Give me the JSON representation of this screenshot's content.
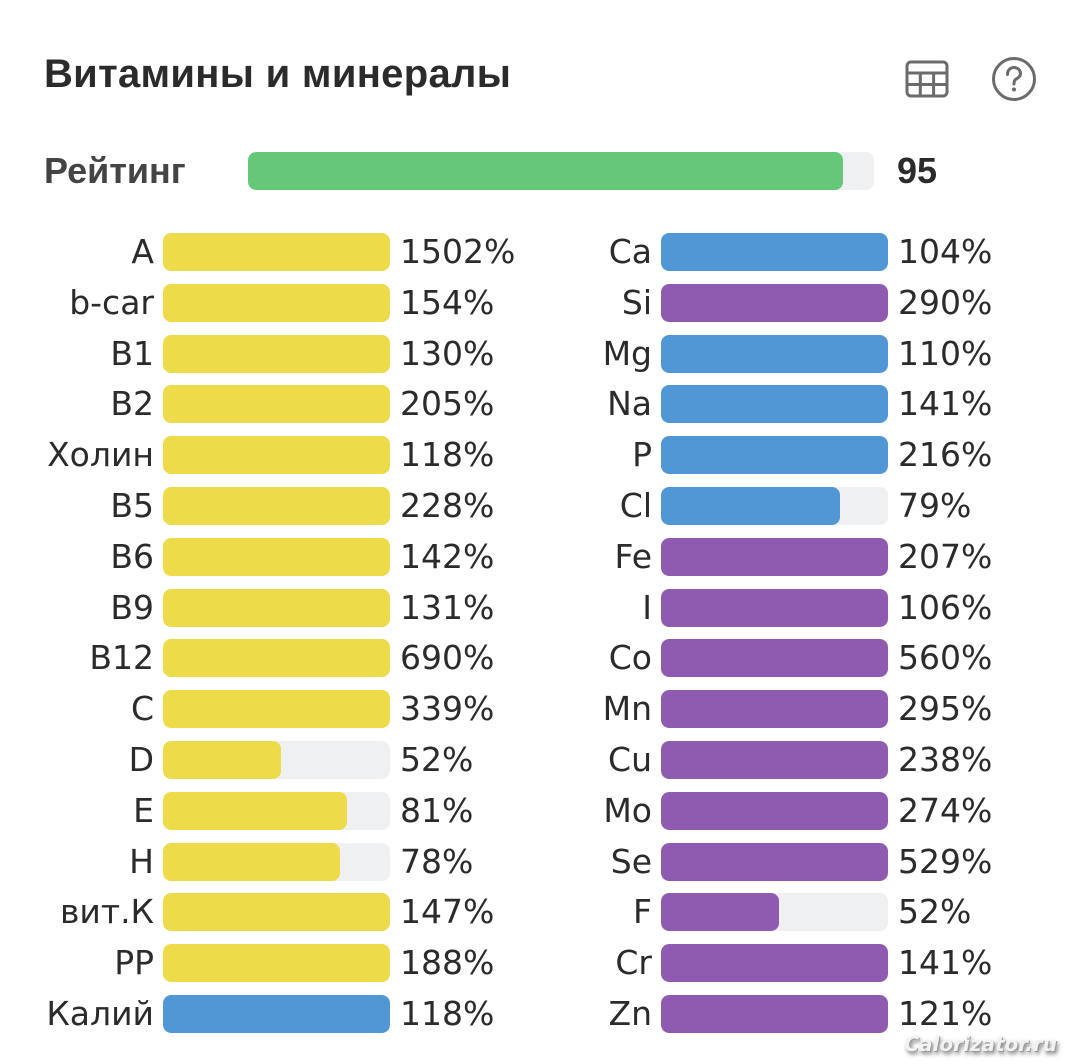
{
  "header": {
    "title": "Витамины и минералы",
    "table_icon": "table-icon",
    "help_icon": "help-circle-icon"
  },
  "rating": {
    "label": "Рейтинг",
    "value": "95",
    "percent": 95,
    "color": "#64c878"
  },
  "colors": {
    "vitamin": "#eedb4a",
    "macro": "#5297d5",
    "micro": "#8f5bb0",
    "track": "#eff0f2"
  },
  "chart_data": {
    "type": "bar",
    "title": "Витамины и минералы",
    "orientation": "horizontal",
    "unit": "% of daily value",
    "bar_max_percent": 100,
    "series": [
      {
        "name": "left-column",
        "items": [
          {
            "label": "A",
            "value": 1502,
            "display": "1502%",
            "group": "vitamin"
          },
          {
            "label": "b-car",
            "value": 154,
            "display": "154%",
            "group": "vitamin"
          },
          {
            "label": "B1",
            "value": 130,
            "display": "130%",
            "group": "vitamin"
          },
          {
            "label": "B2",
            "value": 205,
            "display": "205%",
            "group": "vitamin"
          },
          {
            "label": "Холин",
            "value": 118,
            "display": "118%",
            "group": "vitamin"
          },
          {
            "label": "B5",
            "value": 228,
            "display": "228%",
            "group": "vitamin"
          },
          {
            "label": "B6",
            "value": 142,
            "display": "142%",
            "group": "vitamin"
          },
          {
            "label": "B9",
            "value": 131,
            "display": "131%",
            "group": "vitamin"
          },
          {
            "label": "B12",
            "value": 690,
            "display": "690%",
            "group": "vitamin"
          },
          {
            "label": "C",
            "value": 339,
            "display": "339%",
            "group": "vitamin"
          },
          {
            "label": "D",
            "value": 52,
            "display": "52%",
            "group": "vitamin"
          },
          {
            "label": "E",
            "value": 81,
            "display": "81%",
            "group": "vitamin"
          },
          {
            "label": "H",
            "value": 78,
            "display": "78%",
            "group": "vitamin"
          },
          {
            "label": "вит.К",
            "value": 147,
            "display": "147%",
            "group": "vitamin"
          },
          {
            "label": "PP",
            "value": 188,
            "display": "188%",
            "group": "vitamin"
          },
          {
            "label": "Калий",
            "value": 118,
            "display": "118%",
            "group": "macro"
          }
        ]
      },
      {
        "name": "right-column",
        "items": [
          {
            "label": "Ca",
            "value": 104,
            "display": "104%",
            "group": "macro"
          },
          {
            "label": "Si",
            "value": 290,
            "display": "290%",
            "group": "micro"
          },
          {
            "label": "Mg",
            "value": 110,
            "display": "110%",
            "group": "macro"
          },
          {
            "label": "Na",
            "value": 141,
            "display": "141%",
            "group": "macro"
          },
          {
            "label": "P",
            "value": 216,
            "display": "216%",
            "group": "macro"
          },
          {
            "label": "Cl",
            "value": 79,
            "display": "79%",
            "group": "macro"
          },
          {
            "label": "Fe",
            "value": 207,
            "display": "207%",
            "group": "micro"
          },
          {
            "label": "I",
            "value": 106,
            "display": "106%",
            "group": "micro"
          },
          {
            "label": "Co",
            "value": 560,
            "display": "560%",
            "group": "micro"
          },
          {
            "label": "Mn",
            "value": 295,
            "display": "295%",
            "group": "micro"
          },
          {
            "label": "Cu",
            "value": 238,
            "display": "238%",
            "group": "micro"
          },
          {
            "label": "Mo",
            "value": 274,
            "display": "274%",
            "group": "micro"
          },
          {
            "label": "Se",
            "value": 529,
            "display": "529%",
            "group": "micro"
          },
          {
            "label": "F",
            "value": 52,
            "display": "52%",
            "group": "micro"
          },
          {
            "label": "Cr",
            "value": 141,
            "display": "141%",
            "group": "micro"
          },
          {
            "label": "Zn",
            "value": 121,
            "display": "121%",
            "group": "micro"
          }
        ]
      }
    ]
  },
  "watermark": "Calorizator.ru"
}
